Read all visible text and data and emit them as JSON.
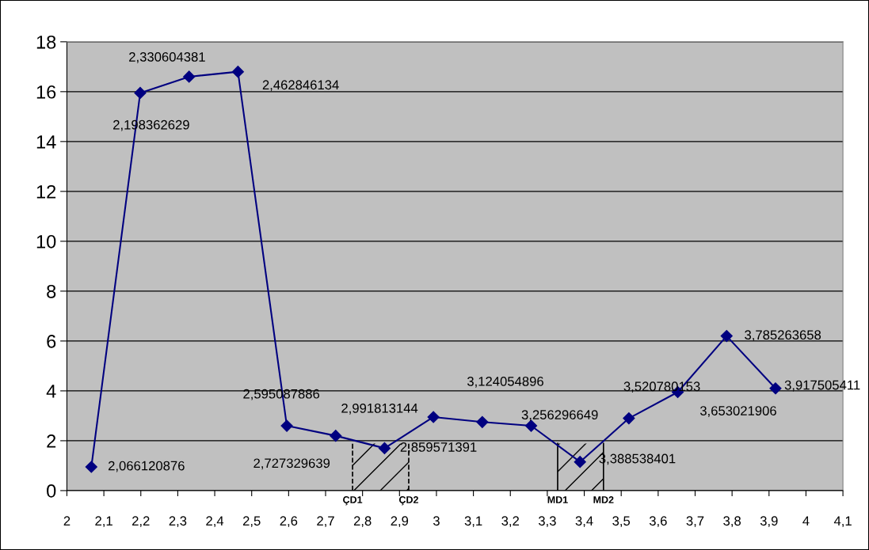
{
  "chart_data": {
    "type": "line",
    "x": [
      2.066120876,
      2.198362629,
      2.330604381,
      2.462846134,
      2.595087886,
      2.727329639,
      2.859571391,
      2.991813144,
      3.124054896,
      3.256296649,
      3.388538401,
      3.520780153,
      3.653021906,
      3.785263658,
      3.917505411
    ],
    "series": [
      {
        "color": "#000080",
        "values": [
          0.95,
          15.95,
          16.6,
          16.8,
          2.6,
          2.2,
          1.7,
          2.95,
          2.75,
          2.6,
          1.15,
          2.9,
          3.95,
          6.2,
          4.1
        ]
      }
    ],
    "marker": "diamond",
    "line_style": "solid",
    "grid": "y",
    "legend": false,
    "xlim": [
      2,
      4.1
    ],
    "ylim": [
      0,
      18
    ],
    "xticks": [
      {
        "value": 2,
        "label": "2"
      },
      {
        "value": 2.1,
        "label": "2,1"
      },
      {
        "value": 2.2,
        "label": "2,2"
      },
      {
        "value": 2.3,
        "label": "2,3"
      },
      {
        "value": 2.4,
        "label": "2,4"
      },
      {
        "value": 2.5,
        "label": "2,5"
      },
      {
        "value": 2.6,
        "label": "2,6"
      },
      {
        "value": 2.7,
        "label": "2,7"
      },
      {
        "value": 2.8,
        "label": "2,8"
      },
      {
        "value": 2.9,
        "label": "2,9"
      },
      {
        "value": 3,
        "label": "3"
      },
      {
        "value": 3.1,
        "label": "3,1"
      },
      {
        "value": 3.2,
        "label": "3,2"
      },
      {
        "value": 3.3,
        "label": "3,3"
      },
      {
        "value": 3.4,
        "label": "3,4"
      },
      {
        "value": 3.5,
        "label": "3,5"
      },
      {
        "value": 3.6,
        "label": "3,6"
      },
      {
        "value": 3.7,
        "label": "3,7"
      },
      {
        "value": 3.8,
        "label": "3,8"
      },
      {
        "value": 3.9,
        "label": "3,9"
      },
      {
        "value": 4,
        "label": "4"
      },
      {
        "value": 4.1,
        "label": "4,1"
      }
    ],
    "yticks": [
      0,
      2,
      4,
      6,
      8,
      10,
      12,
      14,
      16,
      18
    ],
    "ref_lines": [
      {
        "axis": "x",
        "value": 2.773,
        "label": "ÇD1",
        "line_style": "dashed",
        "color": "#000000"
      },
      {
        "axis": "x",
        "value": 2.925,
        "label": "ÇD2",
        "line_style": "dashed",
        "color": "#000000"
      },
      {
        "axis": "x",
        "value": 3.328,
        "label": "MD1",
        "line_style": "solid",
        "color": "#000000"
      },
      {
        "axis": "x",
        "value": 3.452,
        "label": "MD2",
        "line_style": "solid",
        "color": "#000000"
      }
    ],
    "bands": [
      {
        "axis": "x",
        "from": 2.773,
        "to": 2.925,
        "color": "#000000"
      },
      {
        "axis": "x",
        "from": 3.328,
        "to": 3.452,
        "color": "#000000"
      }
    ],
    "annotations": [
      {
        "text": "2,066120876",
        "x": 2.066120876,
        "y": 0.95
      },
      {
        "text": "2,198362629",
        "x": 2.198362629,
        "y": 15.95
      },
      {
        "text": "2,330604381",
        "x": 2.330604381,
        "y": 16.6
      },
      {
        "text": "2,462846134",
        "x": 2.462846134,
        "y": 16.8
      },
      {
        "text": "2,595087886",
        "x": 2.595087886,
        "y": 2.6
      },
      {
        "text": "2,727329639",
        "x": 2.727329639,
        "y": 2.2
      },
      {
        "text": "2,859571391",
        "x": 2.859571391,
        "y": 1.7
      },
      {
        "text": "2,991813144",
        "x": 2.991813144,
        "y": 2.95
      },
      {
        "text": "3,124054896",
        "x": 3.124054896,
        "y": 2.75
      },
      {
        "text": "3,256296649",
        "x": 3.256296649,
        "y": 2.6
      },
      {
        "text": "3,388538401",
        "x": 3.388538401,
        "y": 1.15
      },
      {
        "text": "3,520780153",
        "x": 3.520780153,
        "y": 2.9
      },
      {
        "text": "3,653021906",
        "x": 3.653021906,
        "y": 3.95
      },
      {
        "text": "3,785263658",
        "x": 3.785263658,
        "y": 6.2
      },
      {
        "text": "3,917505411",
        "x": 3.917505411,
        "y": 4.1
      }
    ]
  }
}
